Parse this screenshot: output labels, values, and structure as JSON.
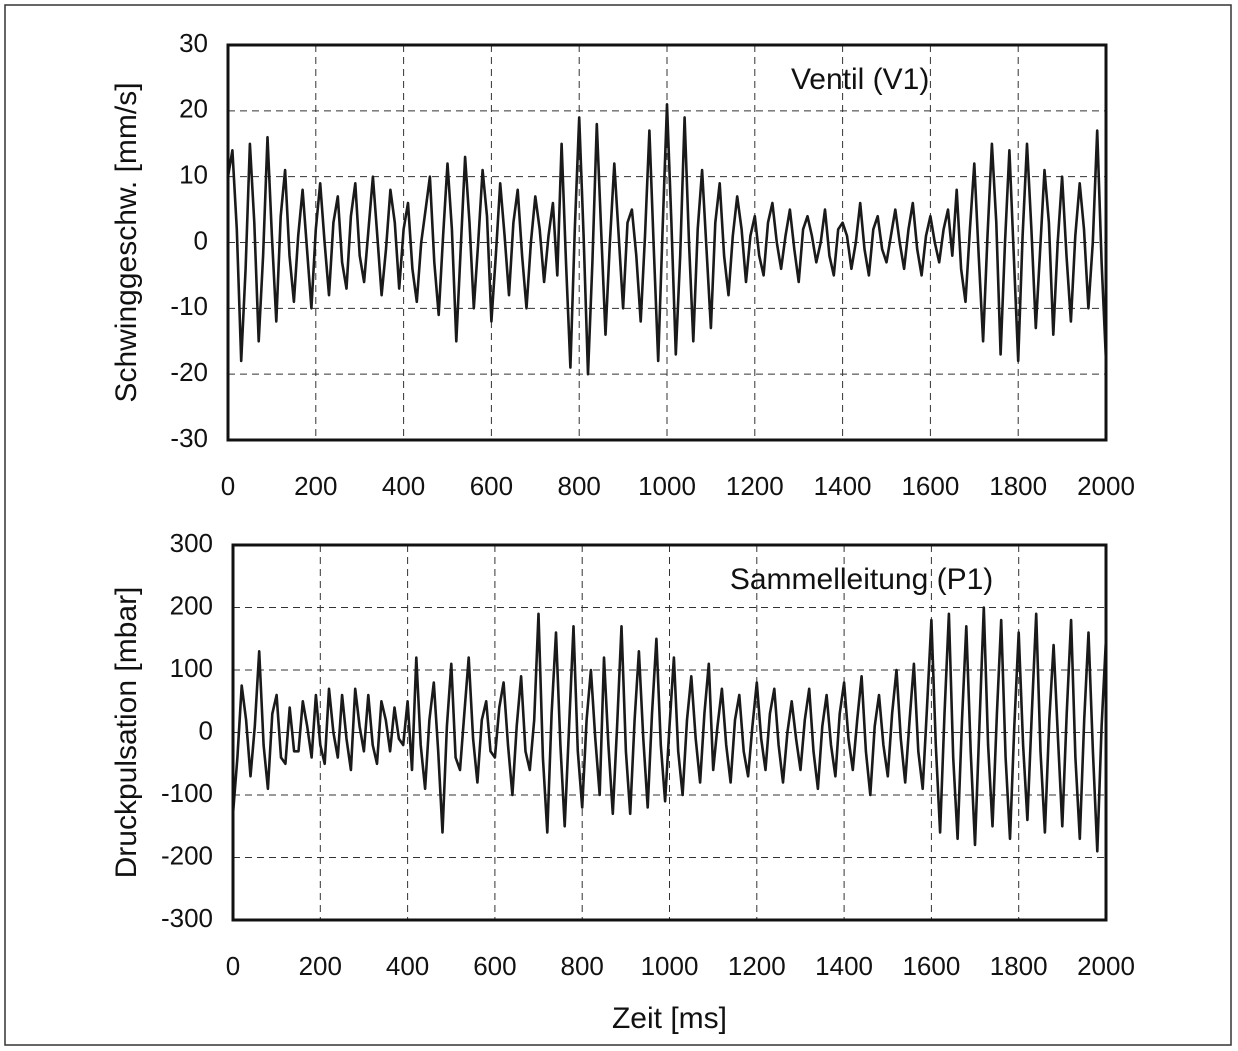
{
  "chart_data": [
    {
      "type": "line",
      "annotation": "Ventil (V1)",
      "y_label": "Schwinggeschw. [mm/s]",
      "x": [
        0,
        10,
        20,
        30,
        40,
        50,
        60,
        70,
        80,
        90,
        100,
        110,
        120,
        130,
        140,
        150,
        160,
        170,
        180,
        190,
        200,
        210,
        220,
        230,
        240,
        250,
        260,
        270,
        280,
        290,
        300,
        310,
        320,
        330,
        340,
        350,
        360,
        370,
        380,
        390,
        400,
        410,
        420,
        430,
        440,
        450,
        460,
        470,
        480,
        490,
        500,
        510,
        520,
        530,
        540,
        550,
        560,
        570,
        580,
        590,
        600,
        610,
        620,
        630,
        640,
        650,
        660,
        670,
        680,
        690,
        700,
        710,
        720,
        730,
        740,
        750,
        760,
        770,
        780,
        790,
        800,
        810,
        820,
        830,
        840,
        850,
        860,
        870,
        880,
        890,
        900,
        910,
        920,
        930,
        940,
        950,
        960,
        970,
        980,
        990,
        1000,
        1010,
        1020,
        1030,
        1040,
        1050,
        1060,
        1070,
        1080,
        1090,
        1100,
        1110,
        1120,
        1130,
        1140,
        1150,
        1160,
        1170,
        1180,
        1190,
        1200,
        1210,
        1220,
        1230,
        1240,
        1250,
        1260,
        1270,
        1280,
        1290,
        1300,
        1310,
        1320,
        1330,
        1340,
        1350,
        1360,
        1370,
        1380,
        1390,
        1400,
        1410,
        1420,
        1430,
        1440,
        1450,
        1460,
        1470,
        1480,
        1490,
        1500,
        1510,
        1520,
        1530,
        1540,
        1550,
        1560,
        1570,
        1580,
        1590,
        1600,
        1610,
        1620,
        1630,
        1640,
        1650,
        1660,
        1670,
        1680,
        1690,
        1700,
        1710,
        1720,
        1730,
        1740,
        1750,
        1760,
        1770,
        1780,
        1790,
        1800,
        1810,
        1820,
        1830,
        1840,
        1850,
        1860,
        1870,
        1880,
        1890,
        1900,
        1910,
        1920,
        1930,
        1940,
        1950,
        1960,
        1970,
        1980,
        1990,
        2000
      ],
      "series": [
        {
          "color": "#1a1a1a",
          "values": [
            10,
            14,
            2,
            -18,
            -4,
            15,
            3,
            -15,
            -2,
            16,
            1,
            -12,
            4,
            11,
            -2,
            -9,
            1,
            8,
            -1,
            -10,
            2,
            9,
            0,
            -8,
            3,
            7,
            -3,
            -7,
            4,
            9,
            -2,
            -6,
            2,
            10,
            1,
            -8,
            -1,
            8,
            3,
            -7,
            2,
            6,
            -4,
            -9,
            0,
            5,
            10,
            -3,
            -11,
            1,
            12,
            2,
            -15,
            -1,
            13,
            3,
            -10,
            0,
            11,
            4,
            -12,
            -2,
            9,
            1,
            -8,
            3,
            8,
            -2,
            -10,
            0,
            7,
            2,
            -6,
            1,
            6,
            -5,
            15,
            -3,
            -19,
            2,
            19,
            1,
            -20,
            -3,
            18,
            2,
            -14,
            0,
            12,
            1,
            -10,
            3,
            5,
            -2,
            -12,
            1,
            17,
            -1,
            -18,
            2,
            21,
            3,
            -17,
            -2,
            19,
            0,
            -15,
            2,
            11,
            -1,
            -13,
            3,
            9,
            -2,
            -8,
            1,
            7,
            2,
            -6,
            1,
            4,
            -2,
            -5,
            3,
            6,
            0,
            -4,
            1,
            5,
            -1,
            -6,
            2,
            4,
            1,
            -3,
            0,
            5,
            -2,
            -5,
            2,
            3,
            1,
            -4,
            0,
            6,
            -1,
            -5,
            2,
            4,
            -1,
            -3,
            1,
            5,
            0,
            -4,
            2,
            6,
            -1,
            -5,
            1,
            4,
            0,
            -3,
            2,
            5,
            -2,
            8,
            -4,
            -9,
            2,
            12,
            -2,
            -15,
            1,
            15,
            3,
            -17,
            0,
            14,
            -2,
            -18,
            1,
            15,
            2,
            -13,
            -1,
            11,
            3,
            -14,
            0,
            10,
            -2,
            -12,
            1,
            9,
            2,
            -10,
            0,
            17,
            -3,
            -18
          ]
        }
      ],
      "xlim": [
        0,
        2000
      ],
      "xticks": [
        0,
        200,
        400,
        600,
        800,
        1000,
        1200,
        1400,
        1600,
        1800,
        2000
      ],
      "ylim": [
        -30,
        30
      ],
      "yticks": [
        -30,
        -20,
        -10,
        0,
        10,
        20,
        30
      ],
      "grid": true
    },
    {
      "type": "line",
      "annotation": "Sammelleitung (P1)",
      "y_label": "Druckpulsation [mbar]",
      "x_label": "Zeit [ms]",
      "x": [
        0,
        10,
        20,
        30,
        40,
        50,
        60,
        70,
        80,
        90,
        100,
        110,
        120,
        130,
        140,
        150,
        160,
        170,
        180,
        190,
        200,
        210,
        220,
        230,
        240,
        250,
        260,
        270,
        280,
        290,
        300,
        310,
        320,
        330,
        340,
        350,
        360,
        370,
        380,
        390,
        400,
        410,
        420,
        430,
        440,
        450,
        460,
        470,
        480,
        490,
        500,
        510,
        520,
        530,
        540,
        550,
        560,
        570,
        580,
        590,
        600,
        610,
        620,
        630,
        640,
        650,
        660,
        670,
        680,
        690,
        700,
        710,
        720,
        730,
        740,
        750,
        760,
        770,
        780,
        790,
        800,
        810,
        820,
        830,
        840,
        850,
        860,
        870,
        880,
        890,
        900,
        910,
        920,
        930,
        940,
        950,
        960,
        970,
        980,
        990,
        1000,
        1010,
        1020,
        1030,
        1040,
        1050,
        1060,
        1070,
        1080,
        1090,
        1100,
        1110,
        1120,
        1130,
        1140,
        1150,
        1160,
        1170,
        1180,
        1190,
        1200,
        1210,
        1220,
        1230,
        1240,
        1250,
        1260,
        1270,
        1280,
        1290,
        1300,
        1310,
        1320,
        1330,
        1340,
        1350,
        1360,
        1370,
        1380,
        1390,
        1400,
        1410,
        1420,
        1430,
        1440,
        1450,
        1460,
        1470,
        1480,
        1490,
        1500,
        1510,
        1520,
        1530,
        1540,
        1550,
        1560,
        1570,
        1580,
        1590,
        1600,
        1610,
        1620,
        1630,
        1640,
        1650,
        1660,
        1670,
        1680,
        1690,
        1700,
        1710,
        1720,
        1730,
        1740,
        1750,
        1760,
        1770,
        1780,
        1790,
        1800,
        1810,
        1820,
        1830,
        1840,
        1850,
        1860,
        1870,
        1880,
        1890,
        1900,
        1910,
        1920,
        1930,
        1940,
        1950,
        1960,
        1970,
        1980,
        1990,
        2000
      ],
      "series": [
        {
          "color": "#1a1a1a",
          "values": [
            -130,
            -40,
            75,
            20,
            -70,
            10,
            130,
            -20,
            -90,
            30,
            60,
            -40,
            -50,
            40,
            -30,
            -30,
            50,
            10,
            -40,
            60,
            -20,
            -50,
            70,
            0,
            -40,
            60,
            -10,
            -60,
            70,
            10,
            -30,
            60,
            -20,
            -50,
            50,
            20,
            -30,
            40,
            -10,
            -20,
            50,
            -60,
            120,
            -20,
            -90,
            20,
            80,
            -30,
            -160,
            10,
            110,
            -40,
            -60,
            30,
            120,
            -10,
            -80,
            20,
            50,
            -30,
            -40,
            40,
            80,
            -20,
            -100,
            10,
            90,
            -30,
            -60,
            20,
            190,
            -40,
            -160,
            30,
            160,
            -20,
            -150,
            10,
            170,
            -30,
            -120,
            20,
            100,
            -10,
            -100,
            120,
            -20,
            -130,
            10,
            170,
            -30,
            -130,
            20,
            130,
            -10,
            -120,
            30,
            150,
            -20,
            -110,
            10,
            120,
            -30,
            -100,
            20,
            90,
            -10,
            -80,
            30,
            110,
            -60,
            10,
            70,
            -20,
            -80,
            20,
            60,
            -30,
            -70,
            10,
            80,
            -10,
            -60,
            30,
            70,
            -20,
            -80,
            0,
            50,
            -10,
            -60,
            20,
            70,
            -30,
            -90,
            10,
            60,
            -20,
            -70,
            30,
            80,
            -10,
            -60,
            20,
            90,
            -30,
            -100,
            10,
            60,
            -20,
            -70,
            30,
            100,
            -10,
            -80,
            20,
            110,
            -30,
            -90,
            40,
            180,
            -20,
            -160,
            30,
            190,
            -40,
            -170,
            20,
            170,
            -30,
            -180,
            10,
            200,
            -20,
            -150,
            30,
            180,
            -40,
            -170,
            10,
            160,
            -20,
            -140,
            30,
            190,
            -30,
            -160,
            20,
            140,
            -10,
            -150,
            30,
            180,
            -40,
            -170,
            20,
            160,
            -30,
            -190,
            10,
            150
          ]
        }
      ],
      "xlim": [
        0,
        2000
      ],
      "xticks": [
        0,
        200,
        400,
        600,
        800,
        1000,
        1200,
        1400,
        1600,
        1800,
        2000
      ],
      "ylim": [
        -300,
        300
      ],
      "yticks": [
        -300,
        -200,
        -100,
        0,
        100,
        200,
        300
      ],
      "grid": true
    }
  ]
}
